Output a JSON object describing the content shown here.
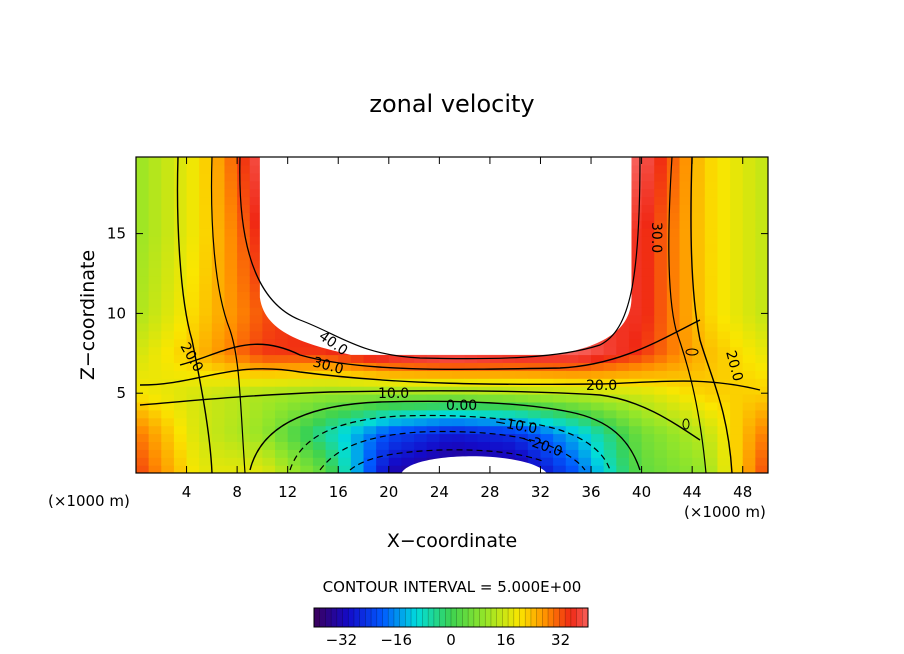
{
  "chart_data": {
    "type": "heatmap",
    "title": "zonal velocity",
    "xlabel": "X−coordinate",
    "ylabel": "Z−coordinate",
    "x_unit": "(×1000 m)",
    "xlim": [
      0,
      50
    ],
    "ylim": [
      0,
      19.8
    ],
    "x_ticks": [
      4,
      8,
      12,
      16,
      20,
      24,
      28,
      32,
      36,
      40,
      44,
      48
    ],
    "y_ticks": [
      5,
      10,
      15
    ],
    "contour_interval_text": "CONTOUR INTERVAL = 5.000E+00",
    "colorbar": {
      "min": -40,
      "max": 40,
      "ticks": [
        "−32",
        "−16",
        "0",
        "16",
        "32"
      ]
    },
    "contour_labels": [
      "40.0",
      "30.0",
      "20.0",
      "20.0",
      "10.0",
      "0.00",
      "−10.0",
      "−20.0",
      "20.0",
      "30.0",
      "20.0"
    ],
    "masked_region": "white (no data) block, x ≈ 10–39, z ≈ 7.5–19.8",
    "field_description_values": {
      "near_walls_z5": 20,
      "jet_core_max": 45,
      "bottom_center_min": -35
    },
    "grid": false,
    "grid_sample": {
      "x": [
        0,
        5,
        10,
        15,
        20,
        25,
        30,
        35,
        40,
        45,
        50
      ],
      "z": [
        0,
        2.5,
        5,
        7.5,
        10,
        15,
        19.8
      ],
      "u": [
        [
          34,
          18,
          18,
          4,
          -32,
          -38,
          -36,
          -20,
          4,
          10,
          34
        ],
        [
          30,
          16,
          10,
          -6,
          -22,
          -28,
          -25,
          -12,
          6,
          14,
          30
        ],
        [
          20,
          16,
          12,
          10,
          10,
          10,
          12,
          14,
          16,
          22,
          22
        ],
        [
          16,
          24,
          34,
          34,
          40,
          42,
          40,
          40,
          34,
          24,
          18
        ],
        [
          12,
          22,
          32,
          38,
          null,
          null,
          null,
          null,
          36,
          22,
          14
        ],
        [
          10,
          20,
          36,
          null,
          null,
          null,
          null,
          null,
          36,
          22,
          14
        ],
        [
          10,
          20,
          40,
          null,
          null,
          null,
          null,
          null,
          40,
          22,
          14
        ]
      ]
    }
  }
}
